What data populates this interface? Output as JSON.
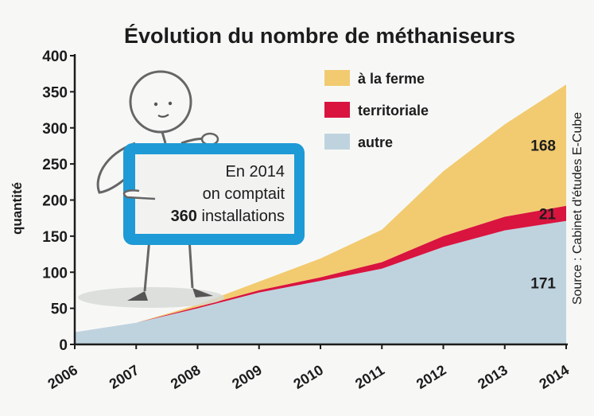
{
  "chart_data": {
    "type": "area",
    "stacked": true,
    "title": "Évolution du nombre de méthaniseurs",
    "ylabel": "quantité",
    "xlabel": "",
    "ylim": [
      0,
      400
    ],
    "yticks": [
      0,
      50,
      100,
      150,
      200,
      250,
      300,
      350,
      400
    ],
    "x": [
      "2006",
      "2007",
      "2008",
      "2009",
      "2010",
      "2011",
      "2012",
      "2013",
      "2014"
    ],
    "series": [
      {
        "name": "autre",
        "color": "#bfd3df",
        "values": [
          17,
          30,
          50,
          72,
          88,
          105,
          135,
          158,
          171
        ]
      },
      {
        "name": "territoriale",
        "color": "#d9143f",
        "values": [
          0,
          0,
          2,
          3,
          5,
          9,
          15,
          19,
          21
        ]
      },
      {
        "name": "à la ferme",
        "color": "#f2cb70",
        "values": [
          0,
          0,
          3,
          12,
          26,
          45,
          90,
          128,
          168
        ]
      }
    ],
    "legend_position": "top-right",
    "annotations": [
      {
        "series": "à la ferme",
        "text": "168"
      },
      {
        "series": "territoriale",
        "text": "21"
      },
      {
        "series": "autre",
        "text": "171"
      }
    ],
    "source": "Source : Cabinet d'études E-Cube",
    "callout": {
      "line1": "En 2014",
      "line2": "on comptait",
      "line3_bold": "360",
      "line3_rest": " installations"
    }
  }
}
